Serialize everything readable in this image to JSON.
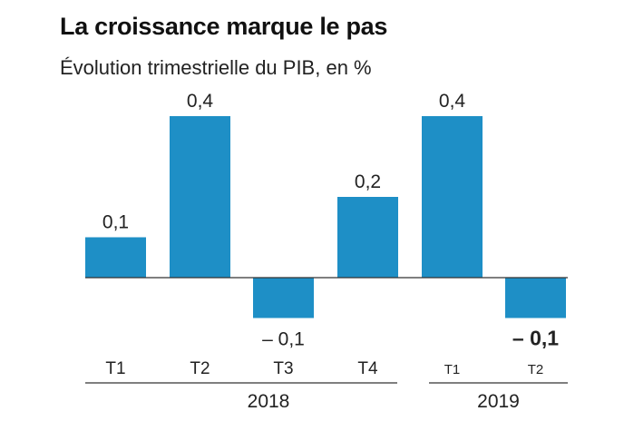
{
  "header": {
    "title": "La croissance marque le pas",
    "subtitle": "Évolution trimestrielle du PIB, en %"
  },
  "colors": {
    "bar": "#1E8FC6",
    "axis": "#333333",
    "text": "#222222"
  },
  "chart_data": {
    "type": "bar",
    "title": "La croissance marque le pas",
    "subtitle": "Évolution trimestrielle du PIB, en %",
    "categories": [
      "T1",
      "T2",
      "T3",
      "T4",
      "T1",
      "T2"
    ],
    "values": [
      0.1,
      0.4,
      -0.1,
      0.2,
      0.4,
      -0.1
    ],
    "value_labels": [
      "0,1",
      "0,4",
      "– 0,1",
      "0,2",
      "0,4",
      "– 0,1"
    ],
    "highlight_index": 5,
    "groups": [
      {
        "label": "2018",
        "categories": [
          "T1",
          "T2",
          "T3",
          "T4"
        ]
      },
      {
        "label": "2019",
        "categories": [
          "T1",
          "T2"
        ]
      }
    ],
    "ylim": [
      -0.1,
      0.4
    ],
    "grid": false,
    "legend": "none"
  }
}
